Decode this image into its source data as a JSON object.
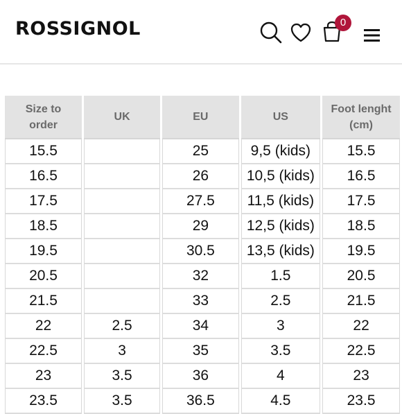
{
  "header": {
    "logo": "ROSSIGNOL",
    "cart_count": "0",
    "icons": [
      "search-icon",
      "heart-icon",
      "bag-icon",
      "menu-icon"
    ],
    "accent_color": "#b0153a"
  },
  "size_table": {
    "headers": [
      "Size to order",
      "UK",
      "EU",
      "US",
      "Foot lenght (cm)"
    ],
    "rows": [
      [
        "15.5",
        "",
        "25",
        "9,5 (kids)",
        "15.5"
      ],
      [
        "16.5",
        "",
        "26",
        "10,5 (kids)",
        "16.5"
      ],
      [
        "17.5",
        "",
        "27.5",
        "11,5 (kids)",
        "17.5"
      ],
      [
        "18.5",
        "",
        "29",
        "12,5 (kids)",
        "18.5"
      ],
      [
        "19.5",
        "",
        "30.5",
        "13,5 (kids)",
        "19.5"
      ],
      [
        "20.5",
        "",
        "32",
        "1.5",
        "20.5"
      ],
      [
        "21.5",
        "",
        "33",
        "2.5",
        "21.5"
      ],
      [
        "22",
        "2.5",
        "34",
        "3",
        "22"
      ],
      [
        "22.5",
        "3",
        "35",
        "3.5",
        "22.5"
      ],
      [
        "23",
        "3.5",
        "36",
        "4",
        "23"
      ],
      [
        "23.5",
        "3.5",
        "36.5",
        "4.5",
        "23.5"
      ]
    ]
  }
}
